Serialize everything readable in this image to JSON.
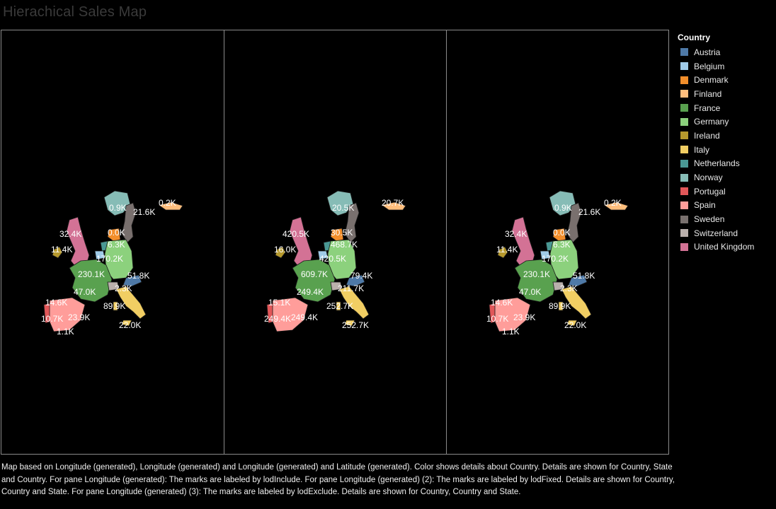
{
  "title": "Hierachical Sales Map",
  "legend": {
    "title": "Country",
    "items": [
      {
        "label": "Austria",
        "color": "#4e79a7"
      },
      {
        "label": "Belgium",
        "color": "#a0cbe8"
      },
      {
        "label": "Denmark",
        "color": "#f28e2b"
      },
      {
        "label": "Finland",
        "color": "#ffbe7d"
      },
      {
        "label": "France",
        "color": "#59a14f"
      },
      {
        "label": "Germany",
        "color": "#8cd17d"
      },
      {
        "label": "Ireland",
        "color": "#b6992d"
      },
      {
        "label": "Italy",
        "color": "#f1ce63"
      },
      {
        "label": "Netherlands",
        "color": "#499894"
      },
      {
        "label": "Norway",
        "color": "#86bcb6"
      },
      {
        "label": "Portugal",
        "color": "#e15759"
      },
      {
        "label": "Spain",
        "color": "#ff9d9a"
      },
      {
        "label": "Sweden",
        "color": "#79706e"
      },
      {
        "label": "Switzerland",
        "color": "#bab0ac"
      },
      {
        "label": "United Kingdom",
        "color": "#d37295"
      }
    ]
  },
  "panes": [
    {
      "labels": {
        "Norway": "0.9K",
        "Sweden": "21.6K",
        "Finland": "0.2K",
        "United Kingdom": "32.4K",
        "Denmark": "0.0K",
        "Ireland": "11.4K",
        "Netherlands": "6.3K",
        "Belgium": "170.2K",
        "France": "230.1K",
        "Austria": "51.8K",
        "Switzerland": "2.3K",
        "Portugal": "47.0K",
        "Spain": "14.6K",
        "Spain2": "10.7K",
        "Spain3": "23.9K",
        "Spain4": "1.1K",
        "Italy": "89.9K",
        "Italy2": "22.0K"
      }
    },
    {
      "labels": {
        "Norway": "20.5K",
        "Sweden": "",
        "Finland": "20.7K",
        "United Kingdom": "420.5K",
        "Denmark": "30.5K",
        "Ireland": "16.0K",
        "Netherlands": "468.7K",
        "Belgium": "420.5K",
        "France": "609.7K",
        "Austria": "79.4K",
        "Switzerland": "211.7K",
        "Portugal": "249.4K",
        "Spain": "15.1K",
        "Spain2": "249.4K",
        "Spain3": "249.4K",
        "Spain4": "",
        "Italy": "252.7K",
        "Italy2": "252.7K"
      }
    },
    {
      "labels": {
        "Norway": "0.9K",
        "Sweden": "21.6K",
        "Finland": "0.2K",
        "United Kingdom": "32.4K",
        "Denmark": "0.0K",
        "Ireland": "11.4K",
        "Netherlands": "6.3K",
        "Belgium": "170.2K",
        "France": "230.1K",
        "Austria": "51.8K",
        "Switzerland": "2.3K",
        "Portugal": "47.0K",
        "Spain": "14.6K",
        "Spain2": "10.7K",
        "Spain3": "23.9K",
        "Spain4": "1.1K",
        "Italy": "89.9K",
        "Italy2": "22.0K"
      }
    }
  ],
  "caption": "Map based on Longitude (generated), Longitude (generated) and Longitude (generated) and Latitude (generated).  Color shows details about Country.  Details are shown for Country, State and Country.  For pane Longitude (generated):  The marks are labeled by lodInclude.  For pane Longitude (generated) (2):  The marks are labeled by lodFixed.  Details are shown for Country, Country and State.  For pane Longitude (generated) (3):  The marks are labeled by lodExclude.  Details are shown for Country, Country and State."
}
